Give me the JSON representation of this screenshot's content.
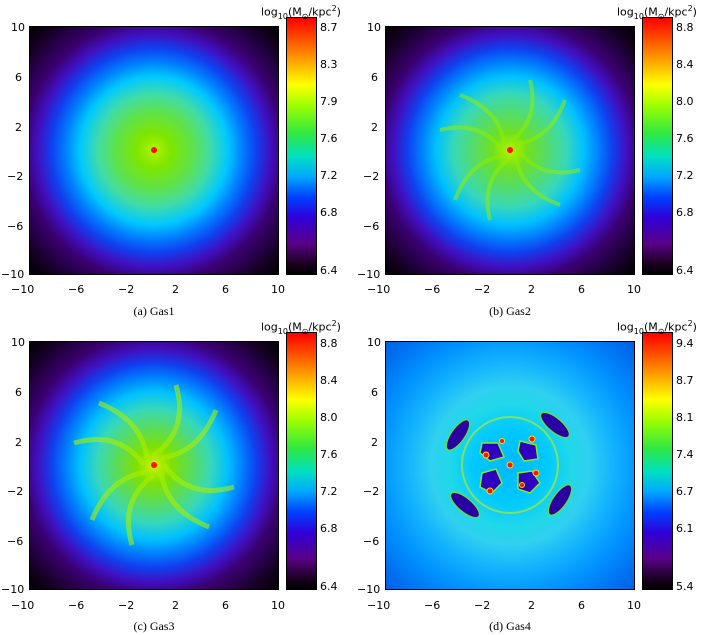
{
  "colorbar_unit": {
    "prefix": "log",
    "sub": "10",
    "mid": "(M",
    "sun": "⊙",
    "tail": "/kpc",
    "sup": "2",
    "close": ")"
  },
  "axis_ticks": [
    "−10",
    "−6",
    "−2",
    "2",
    "6",
    "10"
  ],
  "panels": [
    {
      "caption": "(a) Gas1",
      "colorbar_ticks": [
        "8.7",
        "8.3",
        "7.9",
        "7.6",
        "7.2",
        "6.8",
        "6.4"
      ]
    },
    {
      "caption": "(b) Gas2",
      "colorbar_ticks": [
        "8.8",
        "8.4",
        "8.0",
        "7.6",
        "7.2",
        "6.8",
        "6.4"
      ]
    },
    {
      "caption": "(c) Gas3",
      "colorbar_ticks": [
        "8.8",
        "8.4",
        "8.0",
        "7.6",
        "7.2",
        "6.8",
        "6.4"
      ]
    },
    {
      "caption": "(d) Gas4",
      "colorbar_ticks": [
        "9.4",
        "8.7",
        "8.1",
        "7.4",
        "6.7",
        "6.1",
        "5.4"
      ]
    }
  ],
  "colors": {
    "colormap": [
      "#000000",
      "#5a0088",
      "#3010d8",
      "#0050ff",
      "#00b0ff",
      "#00e8d0",
      "#40f060",
      "#a0ff00",
      "#ffff00",
      "#ff9000",
      "#ff0000"
    ],
    "core": "#ff1010"
  }
}
